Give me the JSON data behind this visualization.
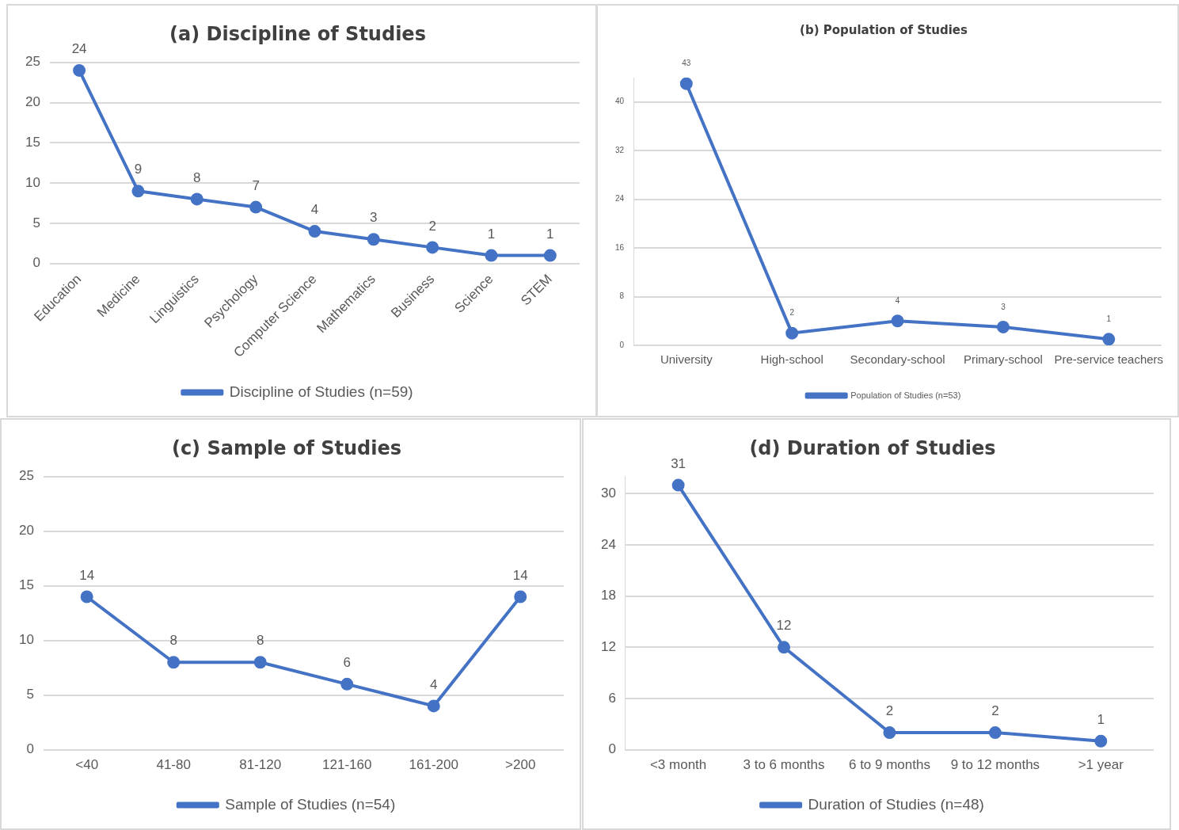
{
  "chart_data": [
    {
      "type": "line",
      "title": "(a) Discipline of Studies",
      "categories": [
        "Education",
        "Medicine",
        "Linguistics",
        "Psychology",
        "Computer Science",
        "Mathematics",
        "Business",
        "Science",
        "STEM"
      ],
      "series": [
        {
          "name": "Discipline of Studies (n=59)",
          "color": "#4472c4",
          "values": [
            24,
            9,
            8,
            7,
            4,
            3,
            2,
            1,
            1
          ]
        }
      ],
      "ylim": [
        0,
        25
      ],
      "yticks": [
        0,
        5,
        10,
        15,
        20,
        25
      ],
      "grid": "y",
      "legend": "bottom",
      "marker": "circle",
      "data_labels": true
    },
    {
      "type": "line",
      "title": "(b) Population of Studies",
      "categories": [
        "University",
        "High-school",
        "Secondary-school",
        "Primary-school",
        "Pre-service teachers"
      ],
      "series": [
        {
          "name": "Population of Studies (n=53)",
          "color": "#4472c4",
          "values": [
            43,
            2,
            4,
            3,
            1
          ]
        }
      ],
      "ylim": [
        0,
        44
      ],
      "yticks": [
        0,
        8,
        16,
        24,
        32,
        40
      ],
      "grid": "y",
      "legend": "bottom",
      "marker": "circle",
      "data_labels": true
    },
    {
      "type": "line",
      "title": "(c) Sample of Studies",
      "categories": [
        "<40",
        "41-80",
        "81-120",
        "121-160",
        "161-200",
        ">200"
      ],
      "series": [
        {
          "name": "Sample of Studies (n=54)",
          "color": "#4472c4",
          "values": [
            14,
            8,
            8,
            6,
            4,
            14
          ]
        }
      ],
      "ylim": [
        0,
        25
      ],
      "yticks": [
        0,
        5,
        10,
        15,
        20,
        25
      ],
      "grid": "y",
      "legend": "bottom",
      "marker": "circle",
      "data_labels": true
    },
    {
      "type": "line",
      "title": "(d) Duration of Studies",
      "categories": [
        "<3 month",
        "3 to 6 months",
        "6 to 9 months",
        "9 to 12 months",
        ">1 year"
      ],
      "series": [
        {
          "name": "Duration of Studies (n=48)",
          "color": "#4472c4",
          "values": [
            31,
            12,
            2,
            2,
            1
          ]
        }
      ],
      "ylim": [
        0,
        32
      ],
      "yticks": [
        0,
        6,
        12,
        18,
        24,
        30
      ],
      "grid": "y",
      "legend": "bottom",
      "marker": "circle",
      "data_labels": true
    }
  ]
}
